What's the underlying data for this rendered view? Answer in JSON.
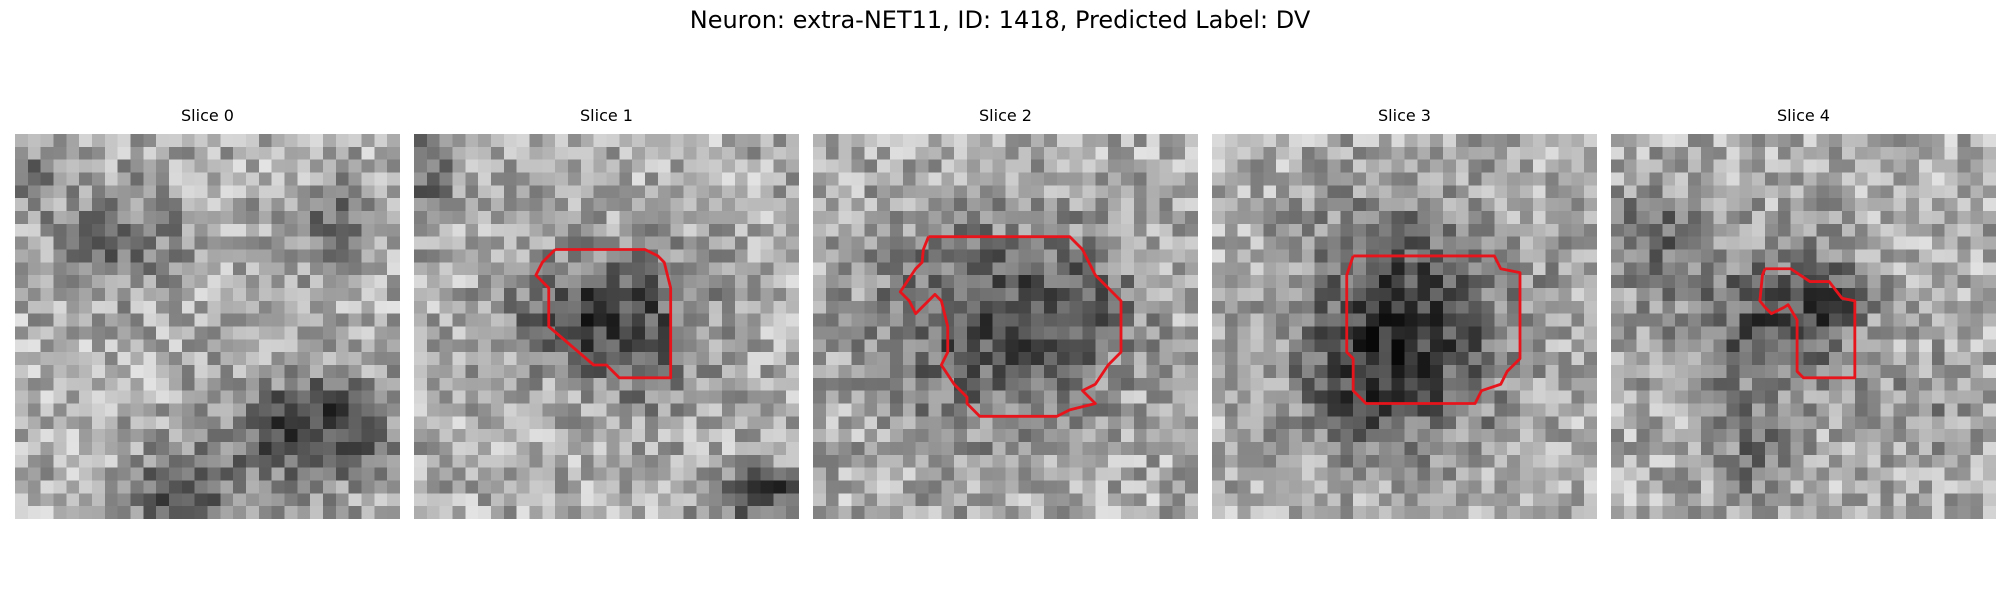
{
  "figure": {
    "title": "Neuron: extra-NET11, ID: 1418, Predicted Label: DV",
    "contour_color": "#e8141c",
    "colormap": "gray"
  },
  "slices": [
    {
      "title": "Slice 0",
      "has_contour": false
    },
    {
      "title": "Slice 1",
      "has_contour": true
    },
    {
      "title": "Slice 2",
      "has_contour": true
    },
    {
      "title": "Slice 3",
      "has_contour": true
    },
    {
      "title": "Slice 4",
      "has_contour": true
    }
  ]
}
